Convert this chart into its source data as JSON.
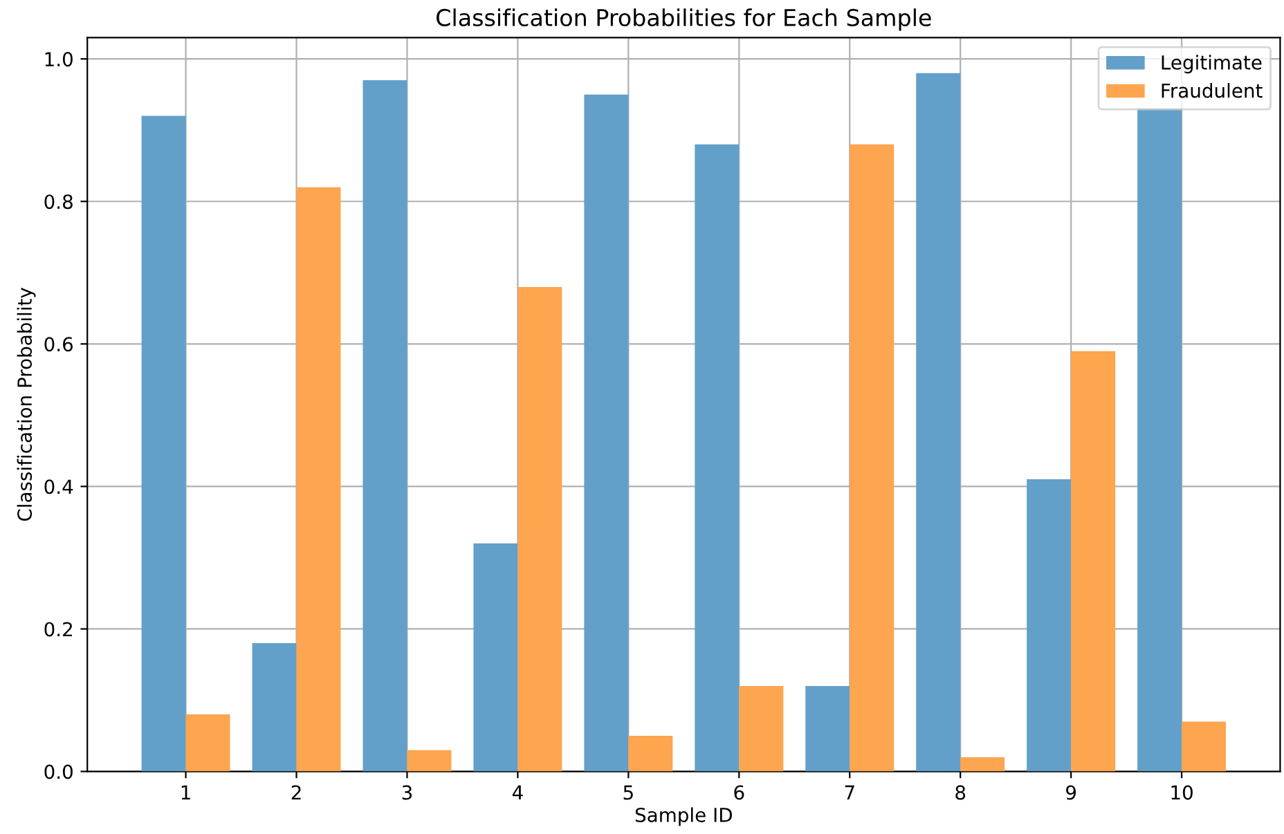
{
  "chart_data": {
    "type": "bar",
    "title": "Classification Probabilities for Each Sample",
    "xlabel": "Sample ID",
    "ylabel": "Classification Probability",
    "x": [
      1,
      2,
      3,
      4,
      5,
      6,
      7,
      8,
      9,
      10
    ],
    "series": [
      {
        "name": "Legitimate",
        "color": "#62a0ca",
        "values": [
          0.92,
          0.18,
          0.97,
          0.32,
          0.95,
          0.88,
          0.12,
          0.98,
          0.41,
          0.93
        ]
      },
      {
        "name": "Fraudulent",
        "color": "#fea54f",
        "values": [
          0.08,
          0.82,
          0.03,
          0.68,
          0.05,
          0.12,
          0.88,
          0.02,
          0.59,
          0.07
        ]
      }
    ],
    "xlim": [
      0.11,
      10.89
    ],
    "xticks": [
      1,
      2,
      3,
      4,
      5,
      6,
      7,
      8,
      9,
      10
    ],
    "ylim": [
      0,
      1.03
    ],
    "yticks": [
      {
        "value": 0,
        "label": "0.0"
      },
      {
        "value": 0.2,
        "label": "0.2"
      },
      {
        "value": 0.4,
        "label": "0.4"
      },
      {
        "value": 0.6,
        "label": "0.6"
      },
      {
        "value": 0.8,
        "label": "0.8"
      },
      {
        "value": 1.0,
        "label": "1.0"
      }
    ],
    "grid": true,
    "legend": "top right"
  }
}
